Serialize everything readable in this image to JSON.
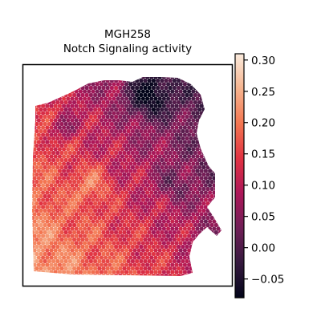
{
  "chart_data": {
    "type": "heatmap",
    "title": "MGH258",
    "subtitle": "Notch Signaling activity",
    "xlabel": "",
    "ylabel": "",
    "colormap": "rocket",
    "color_range": [
      -0.08,
      0.31
    ],
    "colorbar_ticks": [
      "0.30",
      "0.25",
      "0.20",
      "0.15",
      "0.10",
      "0.05",
      "0.00",
      "−0.05"
    ],
    "colorbar_tick_values": [
      0.3,
      0.25,
      0.2,
      0.15,
      0.1,
      0.05,
      0.0,
      -0.05
    ],
    "colormap_stops": [
      "#03051a",
      "#35193e",
      "#701f57",
      "#ad1759",
      "#e13342",
      "#f37651",
      "#f6b48f",
      "#faebdd"
    ],
    "grid": false,
    "legend": "colorbar right",
    "spots": "hexagonal spatial transcriptomics spots colored by Notch signaling activity; lighter (high) in lower-left, darker (low) in upper-right"
  }
}
